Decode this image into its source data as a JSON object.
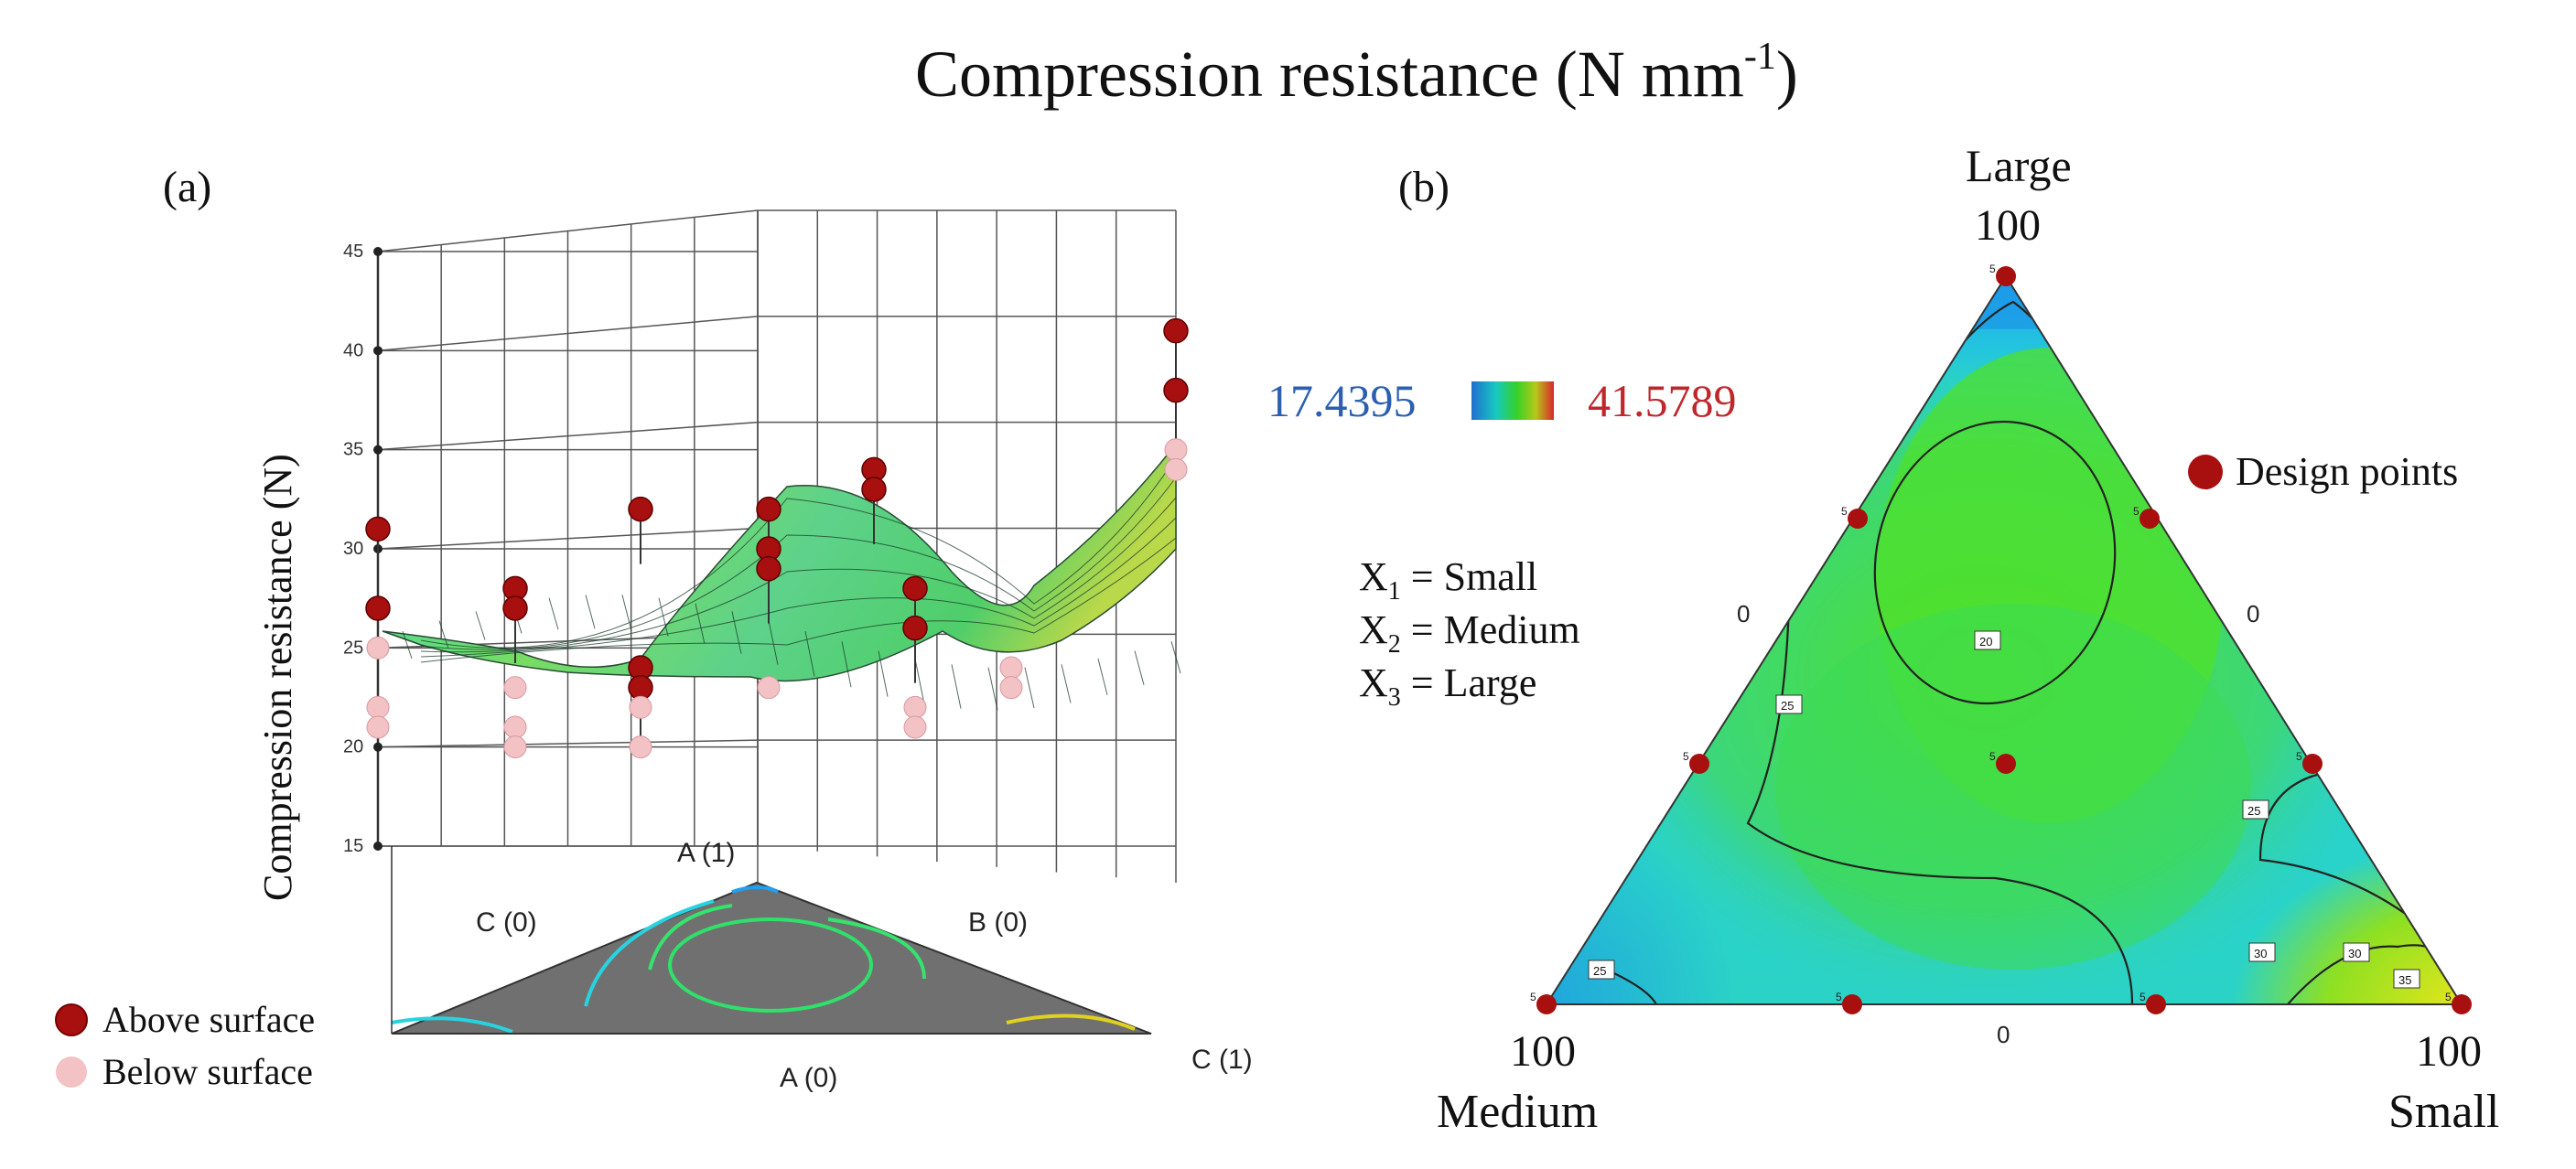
{
  "figure": {
    "title": "Compression resistance (N mm",
    "title_sup": "-1",
    "title_close": ")"
  },
  "panel_a": {
    "label": "(a)",
    "legend": {
      "above": "Above surface",
      "below": "Below surface",
      "above_color": "#a80f0f",
      "below_color": "#f2c2c4"
    }
  },
  "panel_b": {
    "label": "(b)",
    "color_range": {
      "min": "17.4395",
      "max": "41.5789",
      "min_color": "#2b5fb0",
      "max_color": "#c0272d"
    },
    "design_points_label": "Design points",
    "variables": [
      {
        "sym": "X",
        "sub": "1",
        "rest": " = Small"
      },
      {
        "sym": "X",
        "sub": "2",
        "rest": " = Medium"
      },
      {
        "sym": "X",
        "sub": "3",
        "rest": " = Large"
      }
    ]
  },
  "chart_data": [
    {
      "type": "surface3d",
      "title": "",
      "zlabel": "Compression resistance (N)",
      "zlim": [
        15,
        45
      ],
      "zticks": [
        "15",
        "20",
        "25",
        "30",
        "35",
        "40",
        "45"
      ],
      "base_labels": {
        "apex": "A (1)",
        "left": "C (0)",
        "right": "B (0)",
        "front": "A (0)",
        "corner": "C (1)"
      },
      "above_surface_points": [
        31,
        27,
        28,
        27,
        32,
        24,
        23,
        32,
        30,
        29,
        34,
        33,
        28,
        26,
        41,
        38
      ],
      "below_surface_points": [
        25,
        22,
        21,
        23,
        21,
        20,
        22,
        20,
        23,
        22,
        21,
        24,
        23,
        35,
        34
      ]
    },
    {
      "type": "ternary_contour",
      "vertices": {
        "top": {
          "name": "Large",
          "value": "100"
        },
        "left": {
          "name": "Medium",
          "value": "100"
        },
        "right": {
          "name": "Small",
          "value": "100"
        }
      },
      "edge_labels": {
        "left": "0",
        "right": "0",
        "bottom": "0"
      },
      "contour_labels": [
        "20",
        "25",
        "25",
        "25",
        "30",
        "30",
        "35"
      ],
      "design_point_replicates": [
        "5",
        "5",
        "5",
        "5",
        "5",
        "5",
        "5",
        "5",
        "5",
        "5"
      ],
      "value_range": [
        17.4395,
        41.5789
      ]
    }
  ]
}
